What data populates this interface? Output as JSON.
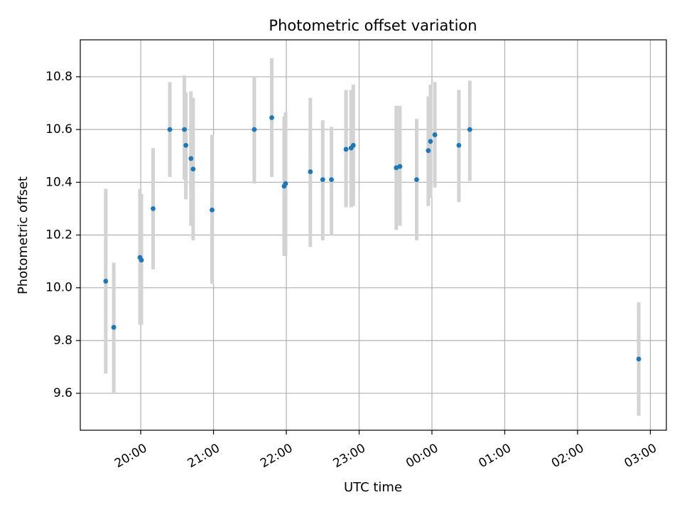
{
  "chart_data": {
    "type": "scatter",
    "title": "Photometric offset variation",
    "xlabel": "UTC time",
    "ylabel": "Photometric offset",
    "grid": true,
    "x_unit": "UTC time (hours, values past 24 are after midnight)",
    "xlim": [
      19.17,
      27.22
    ],
    "ylim": [
      9.46,
      10.94
    ],
    "x_ticks": [
      {
        "value": 20,
        "label": "20:00"
      },
      {
        "value": 21,
        "label": "21:00"
      },
      {
        "value": 22,
        "label": "22:00"
      },
      {
        "value": 23,
        "label": "23:00"
      },
      {
        "value": 24,
        "label": "00:00"
      },
      {
        "value": 25,
        "label": "01:00"
      },
      {
        "value": 26,
        "label": "02:00"
      },
      {
        "value": 27,
        "label": "03:00"
      }
    ],
    "y_ticks": [
      {
        "value": 9.6,
        "label": "9.6"
      },
      {
        "value": 9.8,
        "label": "9.8"
      },
      {
        "value": 10.0,
        "label": "10.0"
      },
      {
        "value": 10.2,
        "label": "10.2"
      },
      {
        "value": 10.4,
        "label": "10.4"
      },
      {
        "value": 10.6,
        "label": "10.6"
      },
      {
        "value": 10.8,
        "label": "10.8"
      }
    ],
    "colors": {
      "point": "#1f77b4",
      "errorbar": "#d3d3d3",
      "grid": "#b0b0b0",
      "axes": "#000000"
    },
    "points": [
      {
        "x": 19.52,
        "y": 10.025,
        "err_low": 9.675,
        "err_high": 10.375
      },
      {
        "x": 19.63,
        "y": 9.85,
        "err_low": 9.6,
        "err_high": 10.095
      },
      {
        "x": 19.99,
        "y": 10.115,
        "err_low": 9.86,
        "err_high": 10.375
      },
      {
        "x": 20.01,
        "y": 10.105,
        "err_low": 9.86,
        "err_high": 10.355
      },
      {
        "x": 20.17,
        "y": 10.3,
        "err_low": 10.07,
        "err_high": 10.53
      },
      {
        "x": 20.4,
        "y": 10.6,
        "err_low": 10.42,
        "err_high": 10.78
      },
      {
        "x": 20.6,
        "y": 10.6,
        "err_low": 10.41,
        "err_high": 10.805
      },
      {
        "x": 20.62,
        "y": 10.54,
        "err_low": 10.335,
        "err_high": 10.74
      },
      {
        "x": 20.69,
        "y": 10.49,
        "err_low": 10.235,
        "err_high": 10.745
      },
      {
        "x": 20.72,
        "y": 10.45,
        "err_low": 10.18,
        "err_high": 10.72
      },
      {
        "x": 20.98,
        "y": 10.295,
        "err_low": 10.015,
        "err_high": 10.58
      },
      {
        "x": 21.56,
        "y": 10.6,
        "err_low": 10.395,
        "err_high": 10.8
      },
      {
        "x": 21.8,
        "y": 10.645,
        "err_low": 10.42,
        "err_high": 10.87
      },
      {
        "x": 21.97,
        "y": 10.385,
        "err_low": 10.12,
        "err_high": 10.65
      },
      {
        "x": 21.99,
        "y": 10.395,
        "err_low": 10.125,
        "err_high": 10.665
      },
      {
        "x": 22.33,
        "y": 10.44,
        "err_low": 10.155,
        "err_high": 10.72
      },
      {
        "x": 22.5,
        "y": 10.41,
        "err_low": 10.18,
        "err_high": 10.635
      },
      {
        "x": 22.62,
        "y": 10.41,
        "err_low": 10.2,
        "err_high": 10.61
      },
      {
        "x": 22.82,
        "y": 10.525,
        "err_low": 10.305,
        "err_high": 10.75
      },
      {
        "x": 22.89,
        "y": 10.53,
        "err_low": 10.305,
        "err_high": 10.75
      },
      {
        "x": 22.92,
        "y": 10.54,
        "err_low": 10.31,
        "err_high": 10.77
      },
      {
        "x": 23.51,
        "y": 10.455,
        "err_low": 10.22,
        "err_high": 10.69
      },
      {
        "x": 23.56,
        "y": 10.46,
        "err_low": 10.235,
        "err_high": 10.69
      },
      {
        "x": 23.79,
        "y": 10.41,
        "err_low": 10.18,
        "err_high": 10.64
      },
      {
        "x": 23.95,
        "y": 10.52,
        "err_low": 10.31,
        "err_high": 10.725
      },
      {
        "x": 23.98,
        "y": 10.555,
        "err_low": 10.34,
        "err_high": 10.77
      },
      {
        "x": 24.04,
        "y": 10.58,
        "err_low": 10.38,
        "err_high": 10.78
      },
      {
        "x": 24.37,
        "y": 10.54,
        "err_low": 10.325,
        "err_high": 10.75
      },
      {
        "x": 24.52,
        "y": 10.6,
        "err_low": 10.405,
        "err_high": 10.785
      },
      {
        "x": 26.84,
        "y": 9.73,
        "err_low": 9.515,
        "err_high": 9.945
      }
    ]
  }
}
